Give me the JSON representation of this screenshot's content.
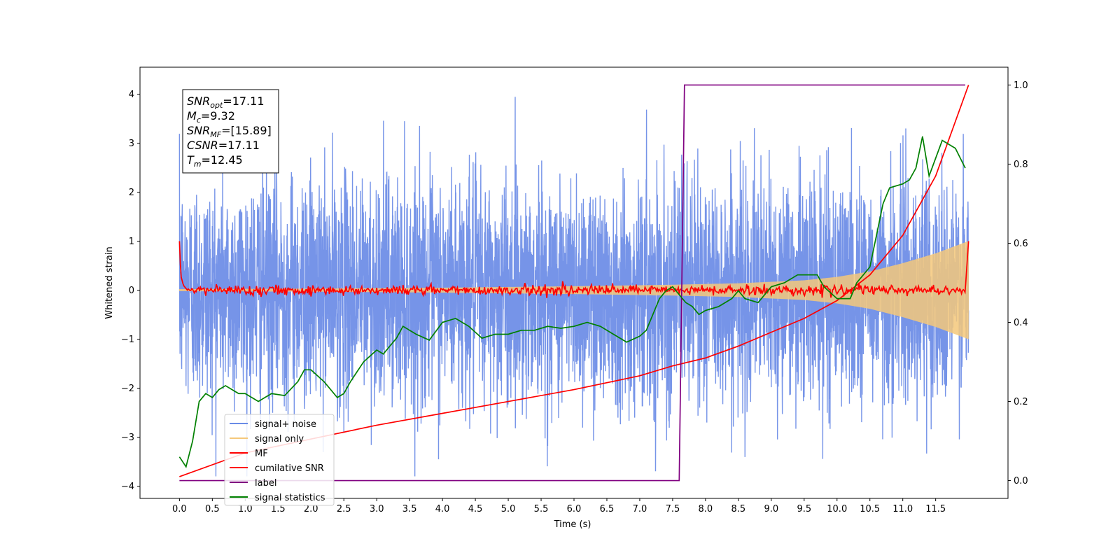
{
  "chart_data": {
    "type": "line",
    "title": "",
    "xlabel": "Time (s)",
    "ylabel": "Whitened strain",
    "y2label": "",
    "xlim": [
      -0.6,
      12.6
    ],
    "ylim": [
      -4.25,
      4.55
    ],
    "y2lim": [
      -0.045,
      1.045
    ],
    "x_ticks": [
      "0.0",
      "0.5",
      "1.0",
      "1.5",
      "2.0",
      "2.5",
      "3.0",
      "3.5",
      "4.0",
      "4.5",
      "5.0",
      "5.5",
      "6.0",
      "6.5",
      "7.0",
      "7.5",
      "8.0",
      "8.5",
      "9.0",
      "9.5",
      "10.0",
      "10.5",
      "11.0",
      "11.5"
    ],
    "y_ticks": [
      "4",
      "3",
      "2",
      "1",
      "0",
      "−1",
      "−2",
      "−3",
      "−4"
    ],
    "y2_ticks": [
      "1.0",
      "0.8",
      "0.6",
      "0.4",
      "0.2",
      "0.0"
    ],
    "grid": false,
    "legend_position": "lower-left",
    "info_box": {
      "lines": [
        {
          "sym": "SNR",
          "sub": "opt",
          "val": "=17.11"
        },
        {
          "sym": "M",
          "sub": "c",
          "val": "=9.32"
        },
        {
          "sym": "SNR",
          "sub": "MF",
          "val": "=[15.89]"
        },
        {
          "sym": "CSNR",
          "sub": "",
          "val": "=17.11"
        },
        {
          "sym": "T",
          "sub": "m",
          "val": "=12.45"
        }
      ]
    },
    "noise_amplitude_range": [
      -3.8,
      4.15
    ],
    "signal_envelope": {
      "x": [
        0.0,
        2.0,
        4.0,
        6.0,
        7.5,
        8.5,
        9.5,
        10.0,
        10.5,
        11.0,
        11.5,
        12.0
      ],
      "amplitude": [
        0.02,
        0.03,
        0.05,
        0.08,
        0.11,
        0.14,
        0.2,
        0.27,
        0.38,
        0.55,
        0.75,
        1.0
      ]
    },
    "series": [
      {
        "name": "signal+ noise",
        "color": "#6a8be6",
        "axis": "left"
      },
      {
        "name": "signal only",
        "color": "#f5c87a",
        "axis": "left"
      },
      {
        "name": "MF",
        "color": "#ff0000",
        "axis": "left",
        "x": [
          0.0,
          0.02,
          0.06,
          0.12,
          0.5,
          1.0,
          2.0,
          3.0,
          4.0,
          5.0,
          6.0,
          7.0,
          8.0,
          9.0,
          10.0,
          11.0,
          11.95,
          12.0
        ],
        "y": [
          1.0,
          0.3,
          0.1,
          0.0,
          0.0,
          0.0,
          0.0,
          0.0,
          0.0,
          0.0,
          0.0,
          0.0,
          0.0,
          0.0,
          0.0,
          0.0,
          0.0,
          1.0
        ]
      },
      {
        "name": "cumilative SNR",
        "color": "#ff0000",
        "axis": "right",
        "x": [
          0.0,
          1.0,
          2.0,
          3.0,
          4.0,
          5.0,
          6.0,
          7.0,
          7.5,
          8.0,
          8.5,
          9.0,
          9.5,
          10.0,
          10.5,
          11.0,
          11.5,
          12.0
        ],
        "y": [
          0.01,
          0.07,
          0.105,
          0.14,
          0.17,
          0.2,
          0.23,
          0.265,
          0.29,
          0.31,
          0.34,
          0.375,
          0.41,
          0.455,
          0.52,
          0.62,
          0.77,
          1.0
        ]
      },
      {
        "name": "label",
        "color": "#800080",
        "axis": "right",
        "x": [
          0.0,
          7.6,
          7.68,
          11.95
        ],
        "y": [
          0.0,
          0.0,
          1.0,
          1.0
        ]
      },
      {
        "name": "signal statistics",
        "color": "#008000",
        "axis": "right",
        "x": [
          0.0,
          0.1,
          0.2,
          0.3,
          0.4,
          0.5,
          0.6,
          0.7,
          0.8,
          0.9,
          1.0,
          1.2,
          1.4,
          1.6,
          1.8,
          1.9,
          2.0,
          2.2,
          2.4,
          2.5,
          2.6,
          2.8,
          3.0,
          3.1,
          3.3,
          3.4,
          3.6,
          3.8,
          4.0,
          4.2,
          4.4,
          4.6,
          4.8,
          5.0,
          5.2,
          5.4,
          5.6,
          5.8,
          6.0,
          6.2,
          6.4,
          6.6,
          6.8,
          7.0,
          7.1,
          7.2,
          7.3,
          7.4,
          7.5,
          7.6,
          7.7,
          7.8,
          7.9,
          8.0,
          8.2,
          8.4,
          8.5,
          8.6,
          8.8,
          9.0,
          9.2,
          9.4,
          9.6,
          9.7,
          9.8,
          10.0,
          10.2,
          10.3,
          10.5,
          10.6,
          10.7,
          10.8,
          11.0,
          11.1,
          11.2,
          11.3,
          11.4,
          11.6,
          11.8,
          11.95
        ],
        "y": [
          0.06,
          0.035,
          0.1,
          0.2,
          0.22,
          0.21,
          0.23,
          0.24,
          0.23,
          0.22,
          0.22,
          0.2,
          0.22,
          0.215,
          0.25,
          0.28,
          0.28,
          0.25,
          0.21,
          0.22,
          0.25,
          0.3,
          0.33,
          0.32,
          0.36,
          0.39,
          0.37,
          0.355,
          0.4,
          0.41,
          0.39,
          0.36,
          0.37,
          0.37,
          0.38,
          0.38,
          0.39,
          0.385,
          0.39,
          0.4,
          0.39,
          0.37,
          0.35,
          0.365,
          0.38,
          0.42,
          0.46,
          0.48,
          0.49,
          0.47,
          0.45,
          0.44,
          0.42,
          0.43,
          0.44,
          0.46,
          0.48,
          0.46,
          0.45,
          0.49,
          0.5,
          0.52,
          0.52,
          0.52,
          0.49,
          0.46,
          0.46,
          0.5,
          0.54,
          0.62,
          0.7,
          0.74,
          0.75,
          0.76,
          0.79,
          0.87,
          0.77,
          0.86,
          0.84,
          0.79
        ]
      }
    ]
  }
}
